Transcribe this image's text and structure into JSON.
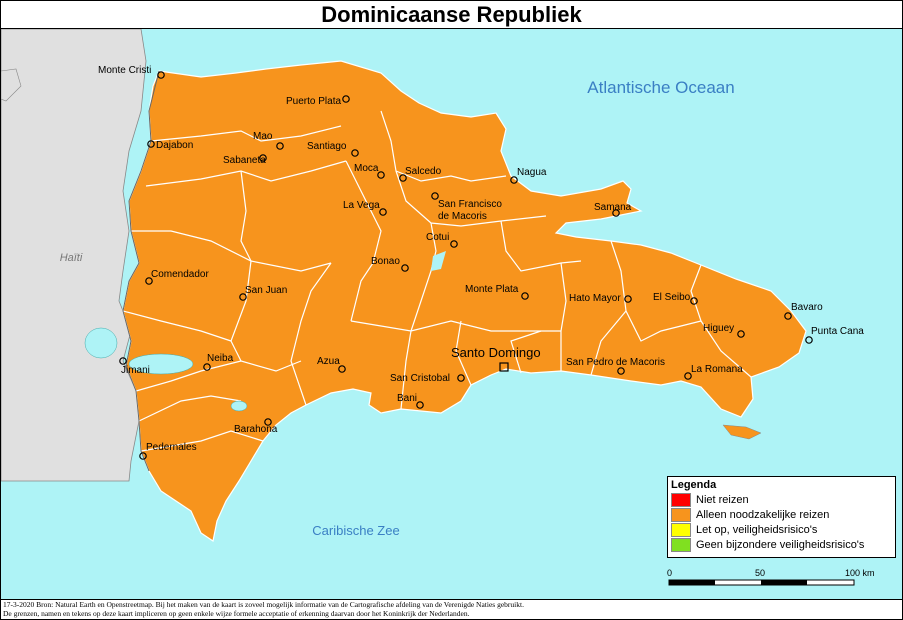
{
  "title": "Dominicaanse Republiek",
  "water": {
    "atlantic": "Atlantische Oceaan",
    "caribbean": "Caribische Zee"
  },
  "neighbor": "Haïti",
  "cities": {
    "monte_cristi": "Monte Cristi",
    "puerto_plata": "Puerto Plata",
    "mao": "Mao",
    "dajabon": "Dajabon",
    "sabaneta": "Sabaneta",
    "santiago": "Santiago",
    "moca": "Moca",
    "salcedo": "Salcedo",
    "nagua": "Nagua",
    "la_vega": "La Vega",
    "sfm": "San Francisco\nde Macoris",
    "samana": "Samana",
    "cotui": "Cotui",
    "bonao": "Bonao",
    "comendador": "Comendador",
    "san_juan": "San Juan",
    "monte_plata": "Monte Plata",
    "hato_mayor": "Hato Mayor",
    "el_seibo": "El Seibo",
    "bavaro": "Bavaro",
    "punta_cana": "Punta Cana",
    "higuey": "Higuey",
    "jimani": "Jimani",
    "neiba": "Neiba",
    "azua": "Azua",
    "santo_domingo": "Santo Domingo",
    "san_cristobal": "San Cristobal",
    "spm": "San Pedro de Macoris",
    "la_romana": "La Romana",
    "bani": "Bani",
    "barahona": "Barahona",
    "pedernales": "Pedernales"
  },
  "legend": {
    "title": "Legenda",
    "items": [
      {
        "label": "Niet reizen",
        "color": "#ff0000"
      },
      {
        "label": "Alleen noodzakelijke reizen",
        "color": "#f7941d"
      },
      {
        "label": "Let op, veiligheidsrisico's",
        "color": "#ffff00"
      },
      {
        "label": "Geen bijzondere veiligheidsrisico's",
        "color": "#80e020"
      }
    ]
  },
  "scale": {
    "t0": "0",
    "t1": "50",
    "t2": "100 km"
  },
  "footer": {
    "line1": "17-3-2020 Bron: Natural Earth en Openstreetmap. Bij het maken van de kaart is zoveel mogelijk informatie van de Cartografische afdeling van de Verenigde Naties gebruikt.",
    "line2": "De grenzen, namen en tekens op deze kaart impliceren op geen enkele wijze formele acceptatie of erkenning daarvan door het Koninkrijk der Nederlanden."
  },
  "colors": {
    "sea": "#aef3f6",
    "country": "#f7941d",
    "neighbor": "#e0e0e0"
  }
}
